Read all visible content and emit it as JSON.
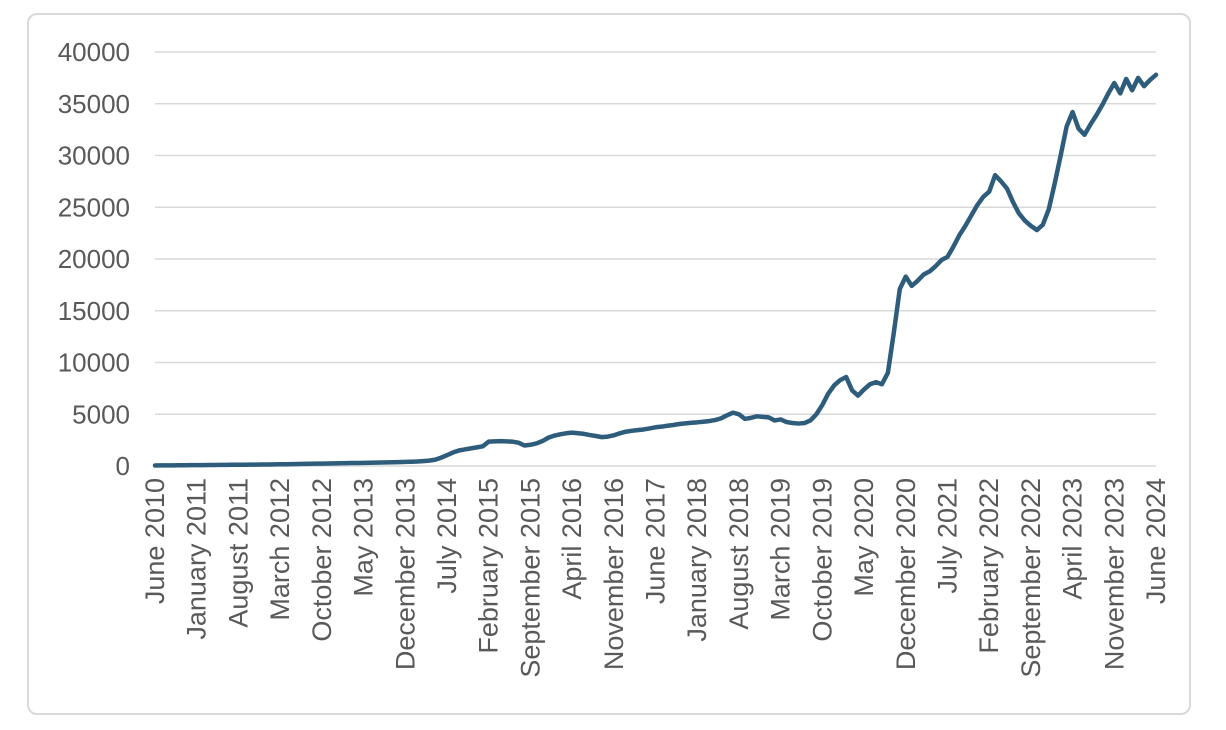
{
  "chart_data": {
    "type": "line",
    "title": "",
    "legend": false,
    "gridlines": "horizontal",
    "x_axis": {
      "start": "June 2010",
      "end": "June 2024",
      "points": 169,
      "tick_interval_months": 7,
      "tick_labels": [
        "June 2010",
        "January 2011",
        "August 2011",
        "March 2012",
        "October 2012",
        "May 2013",
        "December 2013",
        "July 2014",
        "February 2015",
        "September 2015",
        "April 2016",
        "November 2016",
        "June 2017",
        "January 2018",
        "August 2018",
        "March 2019",
        "October 2019",
        "May 2020",
        "December 2020",
        "July 2021",
        "February 2022",
        "September 2022",
        "April 2023",
        "November 2023",
        "June 2024"
      ]
    },
    "y_axis": {
      "min": 0,
      "max": 40000,
      "step": 5000,
      "tick_labels": [
        "0",
        "5000",
        "10000",
        "15000",
        "20000",
        "25000",
        "30000",
        "35000",
        "40000"
      ]
    },
    "values": [
      50,
      55,
      60,
      65,
      70,
      75,
      80,
      85,
      90,
      95,
      100,
      105,
      110,
      115,
      120,
      125,
      130,
      135,
      140,
      150,
      155,
      165,
      175,
      185,
      195,
      205,
      215,
      225,
      235,
      245,
      255,
      265,
      275,
      285,
      295,
      305,
      315,
      325,
      335,
      350,
      365,
      380,
      395,
      410,
      430,
      470,
      520,
      600,
      800,
      1050,
      1300,
      1500,
      1600,
      1700,
      1800,
      1900,
      2350,
      2380,
      2400,
      2380,
      2350,
      2250,
      1980,
      2050,
      2180,
      2400,
      2730,
      2930,
      3060,
      3160,
      3220,
      3160,
      3100,
      2990,
      2900,
      2790,
      2840,
      2960,
      3160,
      3310,
      3400,
      3470,
      3530,
      3630,
      3740,
      3800,
      3890,
      3960,
      4060,
      4120,
      4180,
      4220,
      4280,
      4340,
      4440,
      4600,
      4900,
      5150,
      5000,
      4550,
      4650,
      4800,
      4750,
      4700,
      4400,
      4500,
      4250,
      4150,
      4100,
      4150,
      4400,
      5000,
      5900,
      7000,
      7800,
      8300,
      8600,
      7300,
      6800,
      7400,
      7900,
      8100,
      7900,
      9000,
      12900,
      17100,
      18300,
      17400,
      17900,
      18500,
      18800,
      19300,
      19900,
      20200,
      21200,
      22300,
      23200,
      24200,
      25200,
      26000,
      26500,
      28100,
      27500,
      26800,
      25500,
      24400,
      23700,
      23200,
      22800,
      23300,
      24800,
      27300,
      30000,
      32800,
      34200,
      32600,
      32000,
      33000,
      33900,
      34900,
      36000,
      37000,
      36000,
      37400,
      36300,
      37500,
      36700,
      37300,
      37800
    ],
    "colors": {
      "line": "#2e5d7c",
      "gridline": "#d9d9d9",
      "axis_label": "#595959",
      "frame_border": "#d9d9d9",
      "background": "#ffffff"
    }
  }
}
